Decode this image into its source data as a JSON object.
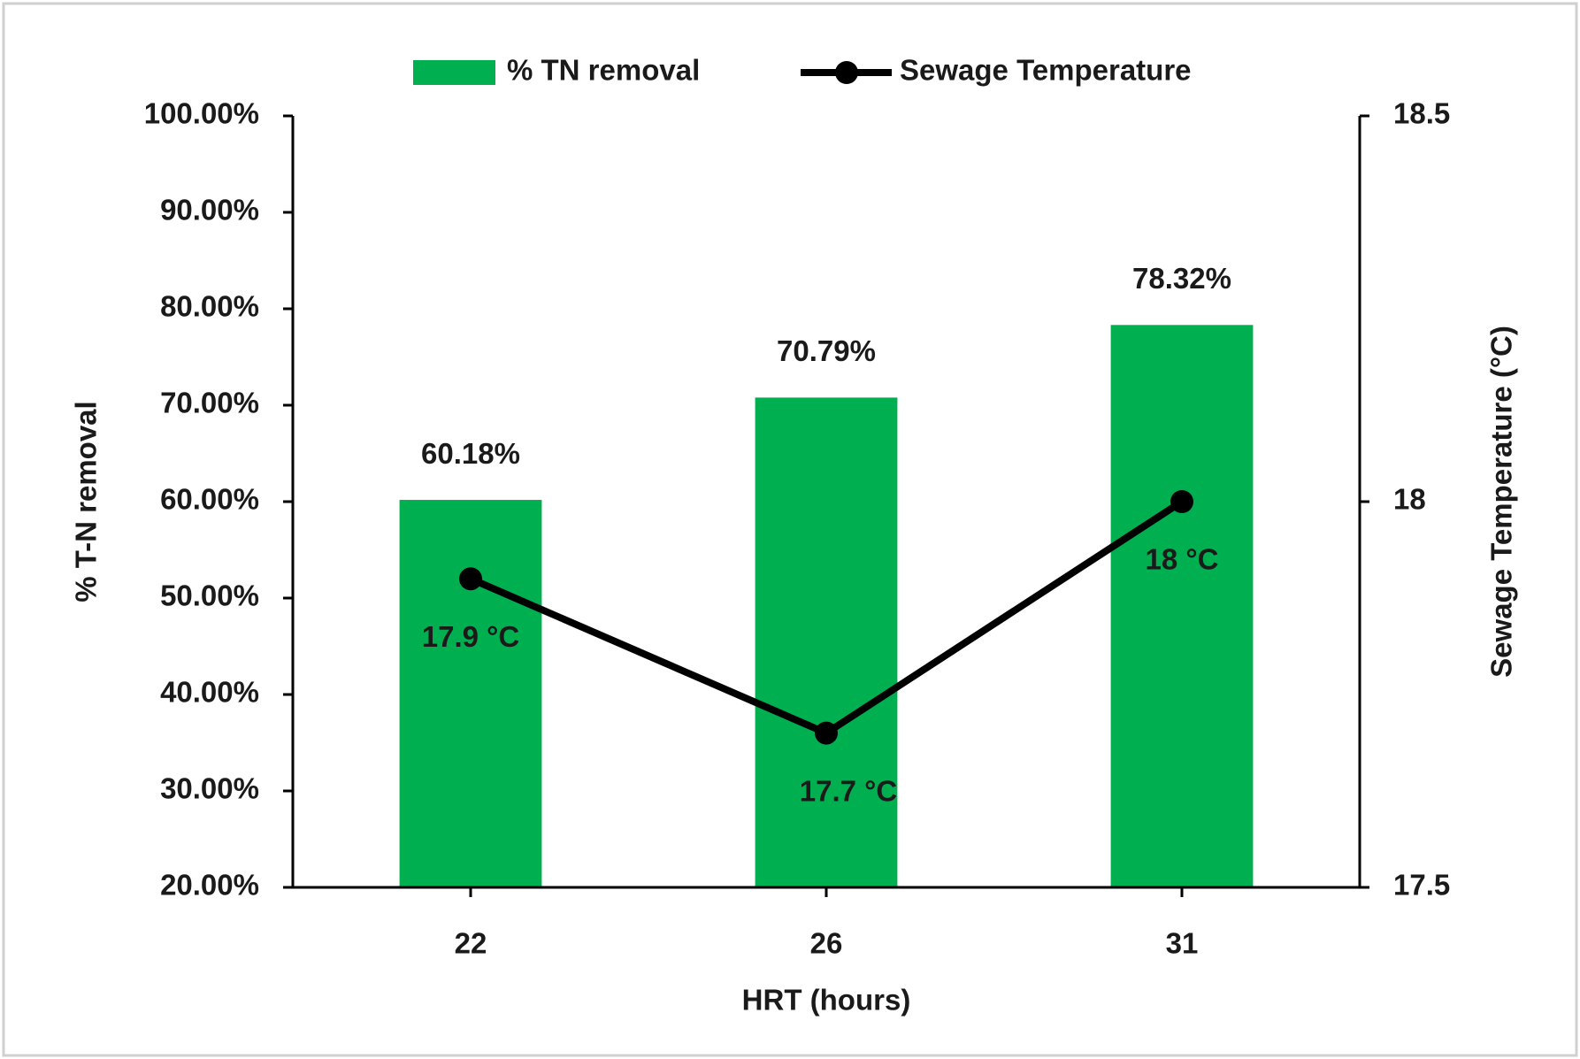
{
  "chart_data": {
    "type": "bar",
    "x_label": "HRT (hours)",
    "y_label": "% T-N removal",
    "y2_label": "Sewage Temperature (°C)",
    "categories": [
      "22",
      "26",
      "31"
    ],
    "series": [
      {
        "name": "% TN removal",
        "type": "bar",
        "color": "#00b050",
        "values": [
          60.18,
          70.79,
          78.32
        ],
        "value_labels": [
          "60.18%",
          "70.79%",
          "78.32%"
        ]
      },
      {
        "name": "Sewage Temperature",
        "type": "line",
        "axis": "y2",
        "color": "#000000",
        "values": [
          17.9,
          17.7,
          18
        ],
        "value_labels": [
          "17.9 °C",
          "17.7 °C",
          "18 °C"
        ]
      }
    ],
    "ylim": [
      20,
      100
    ],
    "yticks": [
      {
        "value": 20,
        "label": "20.00%"
      },
      {
        "value": 30,
        "label": "30.00%"
      },
      {
        "value": 40,
        "label": "40.00%"
      },
      {
        "value": 50,
        "label": "50.00%"
      },
      {
        "value": 60,
        "label": "60.00%"
      },
      {
        "value": 70,
        "label": "70.00%"
      },
      {
        "value": 80,
        "label": "80.00%"
      },
      {
        "value": 90,
        "label": "90.00%"
      },
      {
        "value": 100,
        "label": "100.00%"
      }
    ],
    "y2lim": [
      17.5,
      18.5
    ],
    "y2ticks": [
      17.5,
      18,
      18.5
    ],
    "grid": false,
    "legend": "top"
  }
}
